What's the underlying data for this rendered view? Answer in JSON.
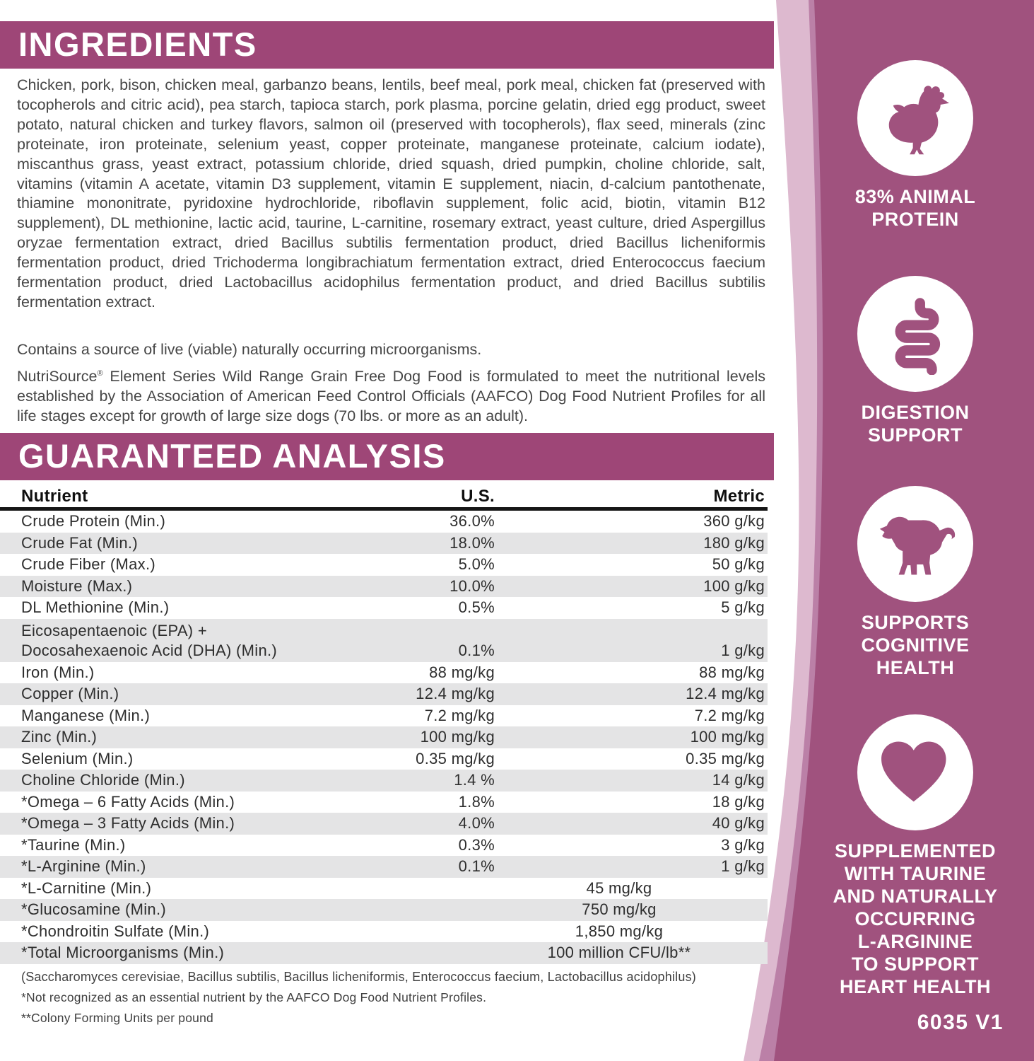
{
  "colors": {
    "bar_magenta": "#9e4677",
    "sidebar_magenta": "#a0527e",
    "sidebar_pink_light": "#ddb9cf",
    "sidebar_pink_mid": "#bb80a7",
    "row_stripe_gray": "#e4e4e5",
    "text_gray": "#464646"
  },
  "ingredients": {
    "title": "INGREDIENTS",
    "body": "Chicken, pork, bison, chicken meal, garbanzo beans, lentils, beef meal, pork meal, chicken fat (preserved with tocopherols and citric acid), pea starch, tapioca starch, pork plasma, porcine gelatin, dried egg product, sweet potato, natural chicken and turkey flavors, salmon oil (preserved with tocopherols), flax seed, minerals (zinc proteinate, iron proteinate, selenium yeast, copper proteinate, manganese proteinate, calcium iodate), miscanthus grass, yeast extract, potassium chloride, dried squash, dried pumpkin, choline chloride, salt, vitamins (vitamin A acetate, vitamin D3 supplement, vitamin E supplement, niacin, d-calcium pantothenate, thiamine mononitrate, pyridoxine hydrochloride, riboflavin supplement, folic acid, biotin, vitamin B12 supplement), DL methionine, lactic acid, taurine, L-carnitine, rosemary extract, yeast culture, dried Aspergillus oryzae fermentation extract, dried Bacillus subtilis fermentation product, dried Bacillus licheniformis fermentation product, dried Trichoderma longibrachiatum fermentation extract, dried Enterococcus faecium fermentation product, dried Lactobacillus acidophilus fermentation product, and dried Bacillus subtilis fermentation extract.",
    "contains": "Contains a source of live (viable) naturally occurring microorganisms.",
    "aafco_brand": "NutriSource",
    "aafco_reg": "®",
    "aafco_rest": " Element Series Wild Range Grain Free Dog Food is formulated to meet the nutritional levels established by the Association of American Feed Control Officials (AAFCO) Dog Food Nutrient Profiles for all life stages except for growth of large size dogs (70 lbs. or more as an adult)."
  },
  "analysis": {
    "title": "GUARANTEED ANALYSIS",
    "headers": {
      "nutrient": "Nutrient",
      "us": "U.S.",
      "metric": "Metric"
    },
    "rows": [
      {
        "nutrient": "Crude Protein (Min.)",
        "us": "36.0%",
        "metric": "360 g/kg"
      },
      {
        "nutrient": "Crude Fat (Min.)",
        "us": "18.0%",
        "metric": "180 g/kg"
      },
      {
        "nutrient": "Crude Fiber (Max.)",
        "us": "5.0%",
        "metric": "50 g/kg"
      },
      {
        "nutrient": "Moisture (Max.)",
        "us": "10.0%",
        "metric": "100 g/kg"
      },
      {
        "nutrient": "DL Methionine (Min.)",
        "us": "0.5%",
        "metric": "5 g/kg"
      },
      {
        "nutrient": "Eicosapentaenoic (EPA) +\nDocosahexaenoic Acid (DHA) (Min.)",
        "us": "0.1%",
        "metric": "1 g/kg",
        "tall": true
      },
      {
        "nutrient": "Iron (Min.)",
        "us": "88 mg/kg",
        "metric": "88 mg/kg"
      },
      {
        "nutrient": "Copper (Min.)",
        "us": "12.4 mg/kg",
        "metric": "12.4 mg/kg"
      },
      {
        "nutrient": "Manganese (Min.)",
        "us": "7.2 mg/kg",
        "metric": "7.2 mg/kg"
      },
      {
        "nutrient": "Zinc (Min.)",
        "us": "100 mg/kg",
        "metric": "100 mg/kg"
      },
      {
        "nutrient": "Selenium (Min.)",
        "us": "0.35 mg/kg",
        "metric": "0.35 mg/kg"
      },
      {
        "nutrient": "Choline Chloride (Min.)",
        "us": "1.4 %",
        "metric": "14 g/kg"
      },
      {
        "nutrient": "*Omega – 6 Fatty Acids (Min.)",
        "us": "1.8%",
        "metric": "18 g/kg"
      },
      {
        "nutrient": "*Omega – 3 Fatty Acids (Min.)",
        "us": "4.0%",
        "metric": "40 g/kg"
      },
      {
        "nutrient": "*Taurine (Min.)",
        "us": "0.3%",
        "metric": "3 g/kg"
      },
      {
        "nutrient": "*L-Arginine (Min.)",
        "us": "0.1%",
        "metric": "1 g/kg"
      },
      {
        "nutrient": "*L-Carnitine (Min.)",
        "merged": "45 mg/kg"
      },
      {
        "nutrient": "*Glucosamine (Min.)",
        "merged": "750 mg/kg"
      },
      {
        "nutrient": "*Chondroitin Sulfate (Min.)",
        "merged": "1,850 mg/kg"
      },
      {
        "nutrient": "*Total Microorganisms (Min.)",
        "merged": "100 million CFU/lb**"
      }
    ],
    "footnotes": [
      "(Saccharomyces cerevisiae, Bacillus subtilis, Bacillus licheniformis, Enterococcus faecium, Lactobacillus acidophilus)",
      "*Not recognized as an essential nutrient by the AAFCO Dog Food Nutrient Profiles.",
      "**Colony Forming Units per pound"
    ]
  },
  "sidebar": {
    "badges": [
      {
        "icon": "chicken-icon",
        "label": "83% ANIMAL\nPROTEIN"
      },
      {
        "icon": "digestion-icon",
        "label": "DIGESTION\nSUPPORT"
      },
      {
        "icon": "puppy-icon",
        "label": "SUPPORTS\nCOGNITIVE\nHEALTH"
      },
      {
        "icon": "heart-icon",
        "label": "SUPPLEMENTED\nWITH TAURINE\nAND NATURALLY\nOCCURRING\nL-ARGININE\nTO SUPPORT\nHEART HEALTH"
      }
    ],
    "version_code": "6035 V1"
  }
}
